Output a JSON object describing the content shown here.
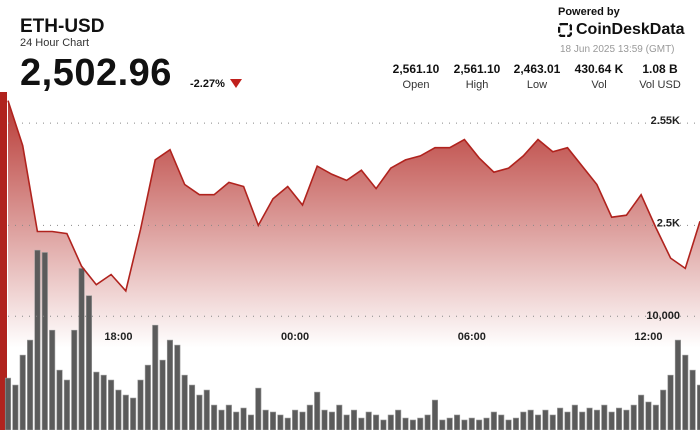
{
  "header": {
    "symbol": "ETH-USD",
    "subtitle": "24 Hour Chart",
    "price": "2,502.96",
    "change": "-2.27%",
    "powered_by": "Powered by",
    "brand": "CoinDeskData",
    "timestamp": "18 Jun 2025 13:59 (GMT)"
  },
  "stats": [
    {
      "value": "2,561.10",
      "label": "Open"
    },
    {
      "value": "2,561.10",
      "label": "High"
    },
    {
      "value": "2,463.01",
      "label": "Low"
    },
    {
      "value": "430.64 K",
      "label": "Vol"
    },
    {
      "value": "1.08 B",
      "label": "Vol USD"
    }
  ],
  "chart_data": [
    {
      "type": "area",
      "color": "#b0231e",
      "x": [
        14.25,
        14.75,
        15.25,
        15.75,
        16.25,
        16.75,
        17.25,
        17.75,
        18.25,
        18.75,
        19.25,
        19.75,
        20.25,
        20.75,
        21.25,
        21.75,
        22.25,
        22.75,
        23.25,
        23.75,
        24.25,
        24.75,
        25.25,
        25.75,
        26.25,
        26.75,
        27.25,
        27.75,
        28.25,
        28.75,
        29.25,
        29.75,
        30.25,
        30.75,
        31.25,
        31.75,
        32.25,
        32.75,
        33.25,
        33.75,
        34.25,
        34.75,
        35.25,
        35.75,
        36.25,
        36.75,
        37.25,
        37.75
      ],
      "values": [
        2561,
        2539,
        2497,
        2497,
        2496,
        2480,
        2471,
        2476,
        2468,
        2498,
        2532,
        2537,
        2520,
        2515,
        2515,
        2521,
        2519,
        2500,
        2513,
        2519,
        2510,
        2529,
        2525,
        2522,
        2527,
        2518,
        2528,
        2532,
        2534,
        2538,
        2538,
        2542,
        2533,
        2526,
        2528,
        2534,
        2542,
        2536,
        2538,
        2529,
        2520,
        2504,
        2505,
        2515,
        2499,
        2484,
        2479,
        2502
      ],
      "xlim": [
        14.25,
        37.75
      ],
      "ylim": [
        2400,
        2561.3
      ],
      "xticks": [
        {
          "value": 18,
          "label": "18:00"
        },
        {
          "value": 24,
          "label": "00:00"
        },
        {
          "value": 30,
          "label": "06:00"
        },
        {
          "value": 36,
          "label": "12:00"
        }
      ],
      "yticks": [
        {
          "value": 2550,
          "label": "2.55K"
        },
        {
          "value": 2500,
          "label": "2.5K"
        }
      ],
      "grid": true
    },
    {
      "type": "bar",
      "color": "#5b5b5b",
      "x": [
        14.25,
        14.5,
        14.75,
        15,
        15.25,
        15.5,
        15.75,
        16,
        16.25,
        16.5,
        16.75,
        17,
        17.25,
        17.5,
        17.75,
        18,
        18.25,
        18.5,
        18.75,
        19,
        19.25,
        19.5,
        19.75,
        20,
        20.25,
        20.5,
        20.75,
        21,
        21.25,
        21.5,
        21.75,
        22,
        22.25,
        22.5,
        22.75,
        23,
        23.25,
        23.5,
        23.75,
        24,
        24.25,
        24.5,
        24.75,
        25,
        25.25,
        25.5,
        25.75,
        26,
        26.25,
        26.5,
        26.75,
        27,
        27.25,
        27.5,
        27.75,
        28,
        28.25,
        28.5,
        28.75,
        29,
        29.25,
        29.5,
        29.75,
        30,
        30.25,
        30.5,
        30.75,
        31,
        31.25,
        31.5,
        31.75,
        32,
        32.25,
        32.5,
        32.75,
        33,
        33.25,
        33.5,
        33.75,
        34,
        34.25,
        34.5,
        34.75,
        35,
        35.25,
        35.5,
        35.75,
        36,
        36.25,
        36.5,
        36.75,
        37,
        37.25,
        37.5,
        37.75
      ],
      "values": [
        4560,
        3950,
        6580,
        7900,
        15800,
        15600,
        8770,
        5260,
        4390,
        8770,
        14200,
        11800,
        5090,
        4820,
        4390,
        3510,
        3070,
        2810,
        4390,
        5700,
        9210,
        6140,
        7900,
        7460,
        4820,
        3950,
        3070,
        3510,
        2190,
        1750,
        2190,
        1580,
        1930,
        1320,
        3680,
        1750,
        1580,
        1320,
        1050,
        1750,
        1580,
        2190,
        3330,
        1750,
        1580,
        2190,
        1320,
        1750,
        1050,
        1580,
        1320,
        880,
        1320,
        1750,
        1050,
        880,
        1050,
        1320,
        2630,
        880,
        1050,
        1320,
        880,
        1050,
        880,
        1050,
        1580,
        1320,
        880,
        1050,
        1580,
        1750,
        1320,
        1750,
        1320,
        1930,
        1580,
        2190,
        1580,
        1930,
        1750,
        2190,
        1580,
        1930,
        1750,
        2190,
        3070,
        2460,
        2190,
        3510,
        4820,
        7900,
        6580,
        5260,
        3950
      ],
      "xlim": [
        14.25,
        37.75
      ],
      "ylim": [
        0,
        29000
      ],
      "yticks": [
        {
          "value": 10000,
          "label": "10,000"
        }
      ],
      "grid": true
    }
  ]
}
